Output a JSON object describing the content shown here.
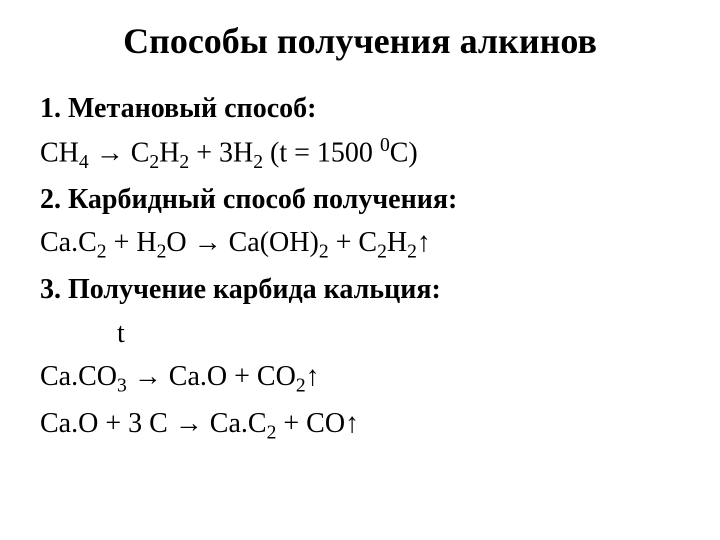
{
  "slide": {
    "title": "Способы получения алкинов",
    "title_fontsize": 36,
    "content_fontsize": 28,
    "background_color": "#ffffff",
    "text_color": "#000000",
    "font_family": "Times New Roman",
    "lines": [
      {
        "type": "heading",
        "number": "1.",
        "text": "Метановый способ:"
      },
      {
        "type": "equation",
        "parts": [
          "CH",
          {
            "sub": "4"
          },
          " → С",
          {
            "sub": "2"
          },
          "Н",
          {
            "sub": "2"
          },
          " + 3Н",
          {
            "sub": "2"
          },
          " (t = 1500 ",
          {
            "sup": "0"
          },
          "С)"
        ]
      },
      {
        "type": "heading",
        "number": "2.",
        "text": "Карбидный способ получения:"
      },
      {
        "type": "equation",
        "parts": [
          "Са.С",
          {
            "sub": "2"
          },
          " + Н",
          {
            "sub": "2"
          },
          "О → Са(ОН)",
          {
            "sub": "2"
          },
          " + С",
          {
            "sub": "2"
          },
          "Н",
          {
            "sub": "2"
          },
          "↑"
        ]
      },
      {
        "type": "heading",
        "number": "3.",
        "text": "Получение карбида кальция:"
      },
      {
        "type": "equation",
        "parts": [
          "           t"
        ]
      },
      {
        "type": "equation",
        "parts": [
          "Ca.CO",
          {
            "sub": "3"
          },
          " → Ca.O + CO",
          {
            "sub": "2"
          },
          "↑"
        ]
      },
      {
        "type": "equation",
        "parts": [
          "Ca.O + 3 C → Ca.C",
          {
            "sub": "2"
          },
          " + CO↑"
        ]
      }
    ]
  }
}
